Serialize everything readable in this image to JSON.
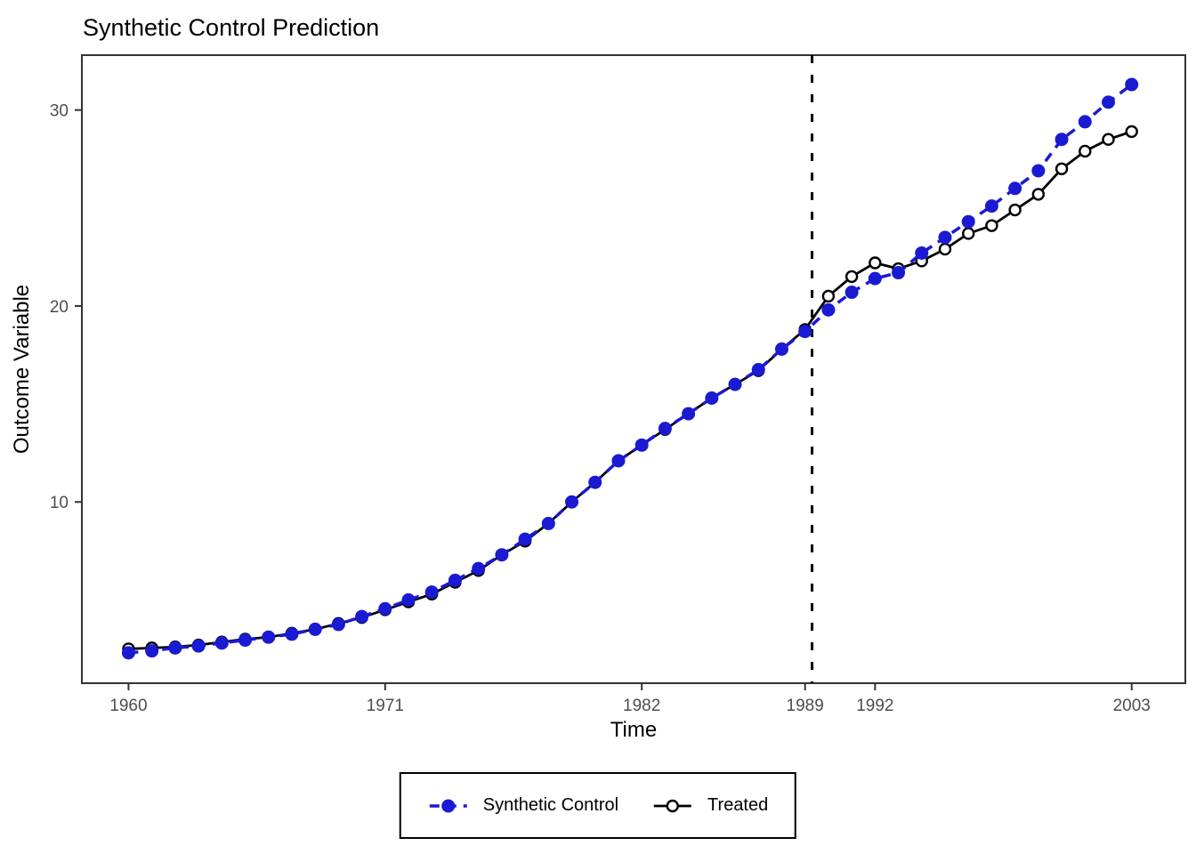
{
  "title": "Synthetic Control Prediction",
  "chart_data": {
    "type": "line",
    "title": "Synthetic Control Prediction",
    "xlabel": "Time",
    "ylabel": "Outcome Variable",
    "x_ticks": [
      1960,
      1971,
      1982,
      1989,
      1992,
      2003
    ],
    "y_ticks": [
      10,
      20,
      30
    ],
    "xlim": [
      1958,
      2005.3
    ],
    "ylim": [
      0.75,
      32.8
    ],
    "grid": false,
    "legend_position": "bottom",
    "vline": {
      "x": 1989.3,
      "style": "dashed",
      "color": "#000000"
    },
    "x": [
      1960,
      1961,
      1962,
      1963,
      1964,
      1965,
      1966,
      1967,
      1968,
      1969,
      1970,
      1971,
      1972,
      1973,
      1974,
      1975,
      1976,
      1977,
      1978,
      1979,
      1980,
      1981,
      1982,
      1983,
      1984,
      1985,
      1986,
      1987,
      1988,
      1989,
      1990,
      1991,
      1992,
      1993,
      1994,
      1995,
      1996,
      1997,
      1998,
      1999,
      2000,
      2001,
      2002,
      2003
    ],
    "series": [
      {
        "name": "Synthetic Control",
        "color": "#1a1ad2",
        "line": "dashed",
        "marker": "filled-circle",
        "values": [
          2.3,
          2.4,
          2.55,
          2.65,
          2.8,
          2.95,
          3.1,
          3.25,
          3.5,
          3.75,
          4.15,
          4.55,
          5.0,
          5.4,
          6.0,
          6.6,
          7.3,
          8.1,
          8.9,
          10.0,
          11.0,
          12.1,
          12.9,
          13.75,
          14.5,
          15.3,
          16.0,
          16.75,
          17.8,
          18.7,
          19.8,
          20.7,
          21.4,
          21.7,
          22.7,
          23.5,
          24.3,
          25.1,
          26.0,
          26.9,
          28.5,
          29.4,
          30.4,
          31.3
        ]
      },
      {
        "name": "Treated",
        "color": "#000000",
        "line": "solid",
        "marker": "open-circle",
        "values": [
          2.5,
          2.55,
          2.6,
          2.7,
          2.85,
          3.0,
          3.1,
          3.3,
          3.5,
          3.8,
          4.1,
          4.5,
          4.9,
          5.3,
          5.9,
          6.5,
          7.3,
          8.0,
          8.9,
          10.0,
          11.0,
          12.1,
          12.9,
          13.7,
          14.5,
          15.3,
          16.0,
          16.7,
          17.8,
          18.8,
          20.5,
          21.5,
          22.2,
          21.9,
          22.3,
          22.9,
          23.7,
          24.1,
          24.9,
          25.7,
          27.0,
          27.9,
          28.5,
          28.9
        ]
      }
    ]
  },
  "legend": {
    "items": [
      {
        "label": "Synthetic Control",
        "swatch": "blue-dashed-filled-dot"
      },
      {
        "label": "Treated",
        "swatch": "black-solid-open-dot"
      }
    ]
  },
  "colors": {
    "synthetic": "#1a1ad2",
    "treated": "#000000",
    "tick_label": "#4d4d4d",
    "panel_border": "#333333",
    "background": "#ffffff"
  }
}
